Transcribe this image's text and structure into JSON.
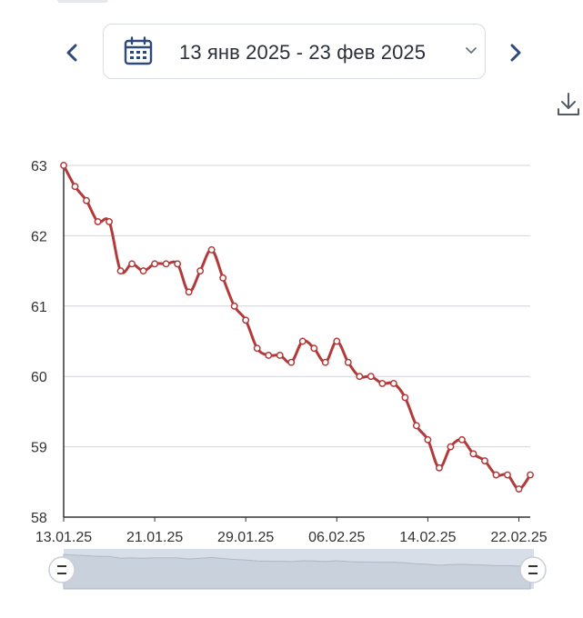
{
  "date_range": {
    "label": "13 янв 2025 - 23 фев 2025"
  },
  "icons": {
    "prev": "chevron-left-icon",
    "next": "chevron-right-icon",
    "calendar": "calendar-icon",
    "dropdown": "chevron-down-icon",
    "download": "download-icon",
    "navigator_handle": "grip-handle-icon"
  },
  "colors": {
    "line": "#b33a3a",
    "nav_accent": "#2f4a7a",
    "navigator_fill": "#d8dee7"
  },
  "chart_data": {
    "type": "line",
    "title": "",
    "xlabel": "",
    "ylabel": "",
    "ylim": [
      58,
      63
    ],
    "yticks": [
      58,
      59,
      60,
      61,
      62,
      63
    ],
    "ytick_labels": [
      "58",
      "59",
      "60",
      "61",
      "62",
      "63"
    ],
    "grid": true,
    "xtick_labels": [
      "13.01.25",
      "21.01.25",
      "29.01.25",
      "06.02.25",
      "14.02.25",
      "22.02.25"
    ],
    "xtick_dates": [
      "2025-01-13",
      "2025-01-21",
      "2025-01-29",
      "2025-02-06",
      "2025-02-14",
      "2025-02-22"
    ],
    "x_range": [
      "2025-01-13",
      "2025-02-23"
    ],
    "series": [
      {
        "x": [
          "2025-01-13",
          "2025-01-14",
          "2025-01-15",
          "2025-01-16",
          "2025-01-17",
          "2025-01-18",
          "2025-01-19",
          "2025-01-20",
          "2025-01-21",
          "2025-01-22",
          "2025-01-23",
          "2025-01-24",
          "2025-01-25",
          "2025-01-26",
          "2025-01-27",
          "2025-01-28",
          "2025-01-29",
          "2025-01-30",
          "2025-01-31",
          "2025-02-01",
          "2025-02-02",
          "2025-02-03",
          "2025-02-04",
          "2025-02-05",
          "2025-02-06",
          "2025-02-07",
          "2025-02-08",
          "2025-02-09",
          "2025-02-10",
          "2025-02-11",
          "2025-02-12",
          "2025-02-13",
          "2025-02-14",
          "2025-02-15",
          "2025-02-16",
          "2025-02-17",
          "2025-02-18",
          "2025-02-19",
          "2025-02-20",
          "2025-02-21",
          "2025-02-22",
          "2025-02-23"
        ],
        "y": [
          63.0,
          62.7,
          62.5,
          62.2,
          62.2,
          61.5,
          61.6,
          61.5,
          61.6,
          61.6,
          61.6,
          61.2,
          61.5,
          61.8,
          61.4,
          61.0,
          60.8,
          60.4,
          60.3,
          60.3,
          60.2,
          60.5,
          60.4,
          60.2,
          60.5,
          60.2,
          60.0,
          60.0,
          59.9,
          59.9,
          59.7,
          59.3,
          59.1,
          58.7,
          59.0,
          59.1,
          58.9,
          58.8,
          58.6,
          58.6,
          58.4,
          58.6
        ]
      }
    ]
  }
}
